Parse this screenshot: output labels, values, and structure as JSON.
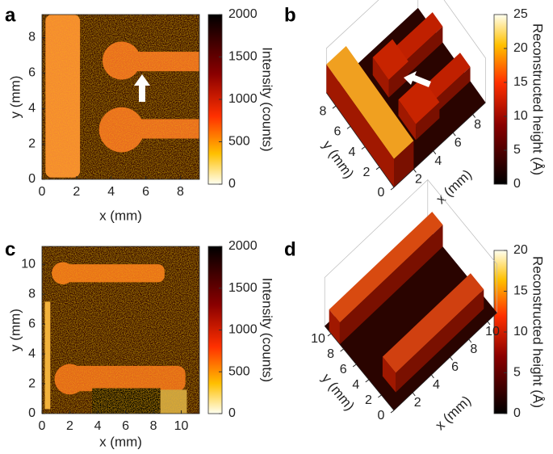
{
  "chart_data": [
    {
      "type": "heatmap",
      "panel": "a",
      "xlabel": "x (mm)",
      "ylabel": "y (mm)",
      "xlim": [
        0,
        9.1
      ],
      "ylim": [
        0,
        9.3
      ],
      "xticks": [
        0,
        2,
        4,
        6,
        8
      ],
      "yticks": [
        0,
        2,
        4,
        6,
        8
      ],
      "colorbar_label": "Intensity (counts)",
      "clim": [
        0,
        2000
      ],
      "cticks": [
        0,
        500,
        1000,
        1500,
        2000
      ],
      "colormap": "hot-reversed"
    },
    {
      "type": "surface",
      "panel": "b",
      "xlabel": "x (mm)",
      "ylabel": "y (mm)",
      "xlim": [
        0,
        9.3
      ],
      "ylim": [
        0,
        9.3
      ],
      "xticks": [
        2,
        4,
        6,
        8
      ],
      "yticks": [
        0,
        2,
        4,
        6,
        8
      ],
      "colorbar_label": "Reconstructed height (Å)",
      "clim": [
        0,
        25
      ],
      "cticks": [
        0,
        5,
        10,
        15,
        20,
        25
      ],
      "colormap": "hot"
    },
    {
      "type": "heatmap",
      "panel": "c",
      "xlabel": "x (mm)",
      "ylabel": "y (mm)",
      "xlim": [
        0,
        11.3
      ],
      "ylim": [
        0,
        11.2
      ],
      "xticks": [
        0,
        2,
        4,
        6,
        8,
        10
      ],
      "yticks": [
        0,
        2,
        4,
        6,
        8,
        10
      ],
      "colorbar_label": "Intensity (counts)",
      "clim": [
        0,
        2000
      ],
      "cticks": [
        0,
        500,
        1000,
        1500,
        2000
      ],
      "colormap": "hot-reversed"
    },
    {
      "type": "surface",
      "panel": "d",
      "xlabel": "x (mm)",
      "ylabel": "y (mm)",
      "xlim": [
        0,
        11
      ],
      "ylim": [
        0,
        11
      ],
      "xticks": [
        2,
        4,
        6,
        8,
        10
      ],
      "yticks": [
        0,
        2,
        4,
        6,
        8,
        10
      ],
      "colorbar_label": "Reconstructed height (Å)",
      "clim": [
        0,
        20
      ],
      "cticks": [
        0,
        5,
        10,
        15,
        20
      ],
      "colormap": "hot"
    }
  ]
}
